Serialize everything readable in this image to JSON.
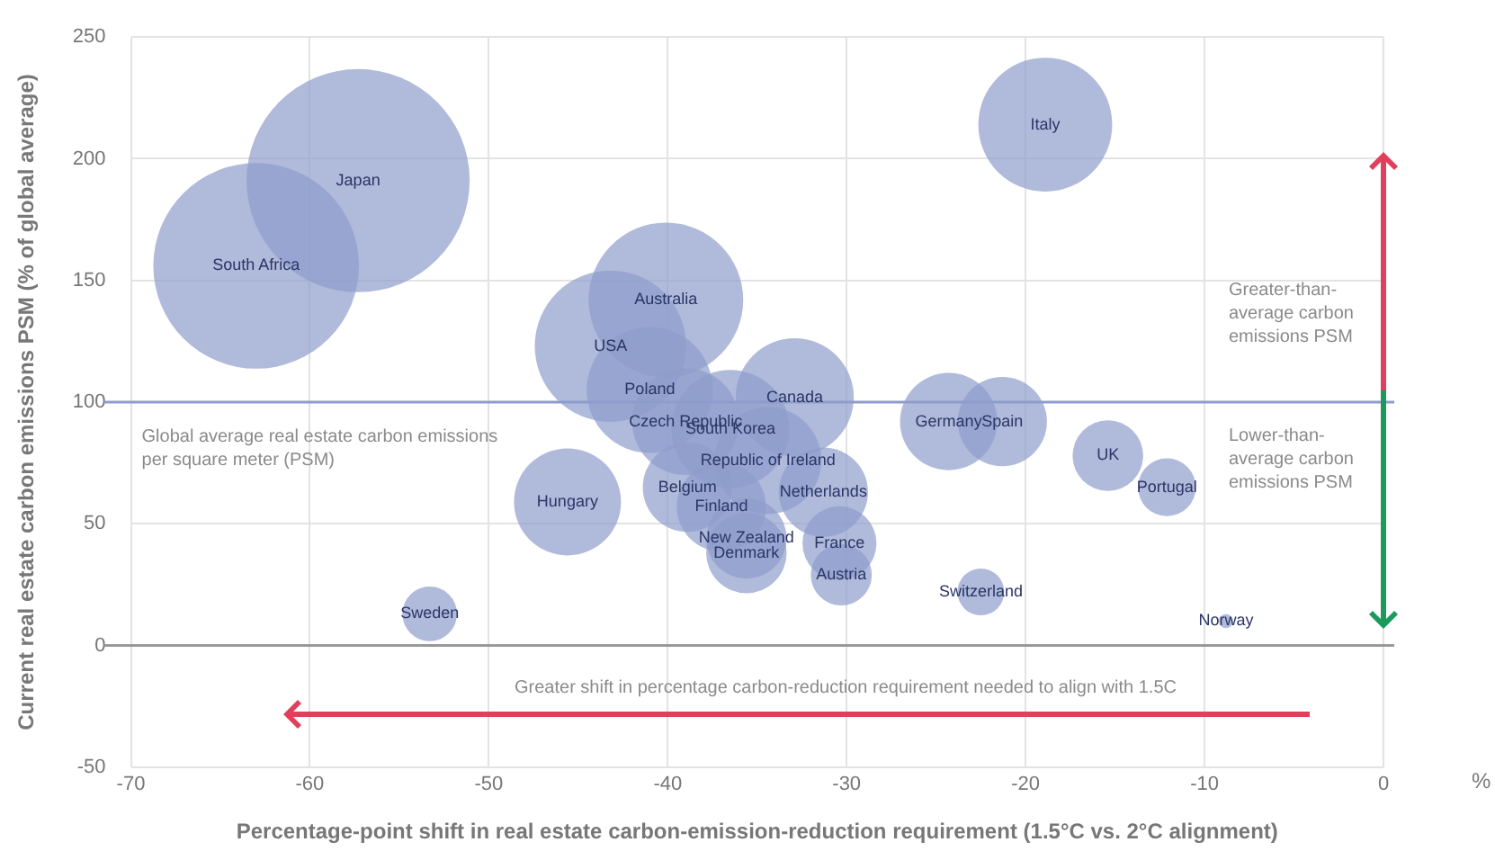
{
  "chart_data": {
    "type": "bubble",
    "xlabel": "Percentage-point shift in real estate carbon-emission-reduction requirement (1.5°C vs. 2°C alignment)",
    "ylabel": "Current real estate carbon emissions PSM (% of global average)",
    "xlim": [
      -70,
      0
    ],
    "xticks": [
      -70,
      -60,
      -50,
      -40,
      -30,
      -20,
      -10,
      0
    ],
    "ylim": [
      -50,
      250
    ],
    "yticks": [
      -50,
      0,
      50,
      100,
      150,
      200,
      250
    ],
    "grid": true,
    "legend": false,
    "series": [
      {
        "name": "Japan",
        "color": "#8e9ccc",
        "x": [
          -57.3
        ],
        "values": [
          191
        ],
        "sizes": [
          1
        ]
      },
      {
        "name": "South Africa",
        "color": "#8e9ccc",
        "x": [
          -63
        ],
        "values": [
          156
        ],
        "sizes": [
          0.85
        ]
      },
      {
        "name": "Australia",
        "color": "#8e9ccc",
        "x": [
          -40.1
        ],
        "values": [
          142
        ],
        "sizes": [
          0.48
        ]
      },
      {
        "name": "USA",
        "color": "#8e9ccc",
        "x": [
          -43.2
        ],
        "values": [
          123
        ],
        "sizes": [
          0.46
        ]
      },
      {
        "name": "Poland",
        "color": "#8e9ccc",
        "x": [
          -41
        ],
        "values": [
          105
        ],
        "sizes": [
          0.32
        ]
      },
      {
        "name": "Czech Republic",
        "color": "#8e9ccc",
        "x": [
          -39
        ],
        "values": [
          92
        ],
        "sizes": [
          0.23
        ]
      },
      {
        "name": "Canada",
        "color": "#8e9ccc",
        "x": [
          -32.9
        ],
        "values": [
          102
        ],
        "sizes": [
          0.28
        ]
      },
      {
        "name": "South Korea",
        "color": "#8e9ccc",
        "x": [
          -36.5
        ],
        "values": [
          89
        ],
        "sizes": [
          0.28
        ]
      },
      {
        "name": "Republic of Ireland",
        "color": "#8e9ccc",
        "x": [
          -34.4
        ],
        "values": [
          76
        ],
        "sizes": [
          0.23
        ]
      },
      {
        "name": "Belgium",
        "color": "#8e9ccc",
        "x": [
          -38.9
        ],
        "values": [
          65
        ],
        "sizes": [
          0.16
        ]
      },
      {
        "name": "Netherlands",
        "color": "#8e9ccc",
        "x": [
          -31.3
        ],
        "values": [
          63
        ],
        "sizes": [
          0.16
        ]
      },
      {
        "name": "Finland",
        "color": "#8e9ccc",
        "x": [
          -37
        ],
        "values": [
          57
        ],
        "sizes": [
          0.16
        ]
      },
      {
        "name": "New Zealand",
        "color": "#8e9ccc",
        "x": [
          -35.6
        ],
        "values": [
          44
        ],
        "sizes": [
          0.13
        ]
      },
      {
        "name": "Denmark",
        "color": "#8e9ccc",
        "x": [
          -35.6
        ],
        "values": [
          38
        ],
        "sizes": [
          0.13
        ]
      },
      {
        "name": "France",
        "color": "#8e9ccc",
        "x": [
          -30.4
        ],
        "values": [
          42
        ],
        "sizes": [
          0.11
        ]
      },
      {
        "name": "Austria",
        "color": "#8e9ccc",
        "x": [
          -30.3
        ],
        "values": [
          29
        ],
        "sizes": [
          0.075
        ]
      },
      {
        "name": "Hungary",
        "color": "#8e9ccc",
        "x": [
          -45.6
        ],
        "values": [
          59
        ],
        "sizes": [
          0.23
        ]
      },
      {
        "name": "Sweden",
        "color": "#8e9ccc",
        "x": [
          -53.3
        ],
        "values": [
          13
        ],
        "sizes": [
          0.06
        ]
      },
      {
        "name": "Germany",
        "color": "#8e9ccc",
        "x": [
          -24.3
        ],
        "values": [
          92
        ],
        "sizes": [
          0.19
        ]
      },
      {
        "name": "Spain",
        "color": "#8e9ccc",
        "x": [
          -21.3
        ],
        "values": [
          92
        ],
        "sizes": [
          0.16
        ]
      },
      {
        "name": "UK",
        "color": "#8e9ccc",
        "x": [
          -15.4
        ],
        "values": [
          78
        ],
        "sizes": [
          0.1
        ]
      },
      {
        "name": "Portugal",
        "color": "#8e9ccc",
        "x": [
          -12.1
        ],
        "values": [
          65
        ],
        "sizes": [
          0.067
        ]
      },
      {
        "name": "Switzerland",
        "color": "#8e9ccc",
        "x": [
          -22.5
        ],
        "values": [
          22
        ],
        "sizes": [
          0.044
        ]
      },
      {
        "name": "Norway",
        "color": "#8e9ccc",
        "x": [
          -8.8
        ],
        "values": [
          10
        ],
        "sizes": [
          0.004
        ]
      },
      {
        "name": "Italy",
        "color": "#8e9ccc",
        "x": [
          -18.9
        ],
        "values": [
          214
        ],
        "sizes": [
          0.36
        ]
      }
    ],
    "ref_lines": [
      {
        "axis": "y",
        "value": 100,
        "label": "Global average real estate carbon emissions per square meter (PSM)",
        "color": "#8e9ccc"
      },
      {
        "axis": "y",
        "value": 0,
        "color": "#999999"
      }
    ],
    "annotations": [
      "Greater-than-average carbon emissions PSM",
      "Lower-than-average carbon emissions PSM",
      "Greater shift in percentage carbon-reduction requirement needed to align with 1.5C",
      "%"
    ]
  }
}
